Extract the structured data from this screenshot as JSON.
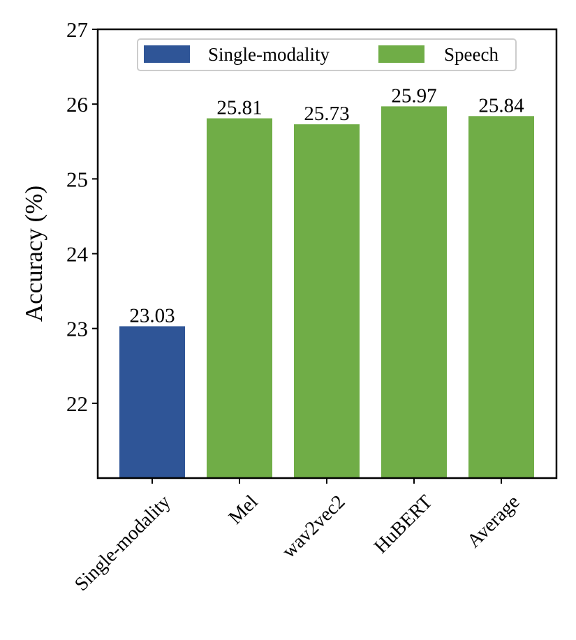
{
  "chart_data": {
    "type": "bar",
    "categories": [
      "Single-modality",
      "Mel",
      "wav2vec2",
      "HuBERT",
      "Average"
    ],
    "values": [
      23.03,
      25.81,
      25.73,
      25.97,
      25.84
    ],
    "value_labels": [
      "23.03",
      "25.81",
      "25.73",
      "25.97",
      "25.84"
    ],
    "groups": [
      "Single-modality",
      "Speech",
      "Speech",
      "Speech",
      "Speech"
    ],
    "legend": [
      {
        "name": "Single-modality",
        "color": "#2f5597"
      },
      {
        "name": "Speech",
        "color": "#70ad47"
      }
    ],
    "legend_position": "top-center",
    "xlabel": "",
    "ylabel": "Accuracy (%)",
    "ylim": [
      21,
      27
    ],
    "yticks": [
      22,
      23,
      24,
      25,
      26,
      27
    ],
    "grid": false
  }
}
